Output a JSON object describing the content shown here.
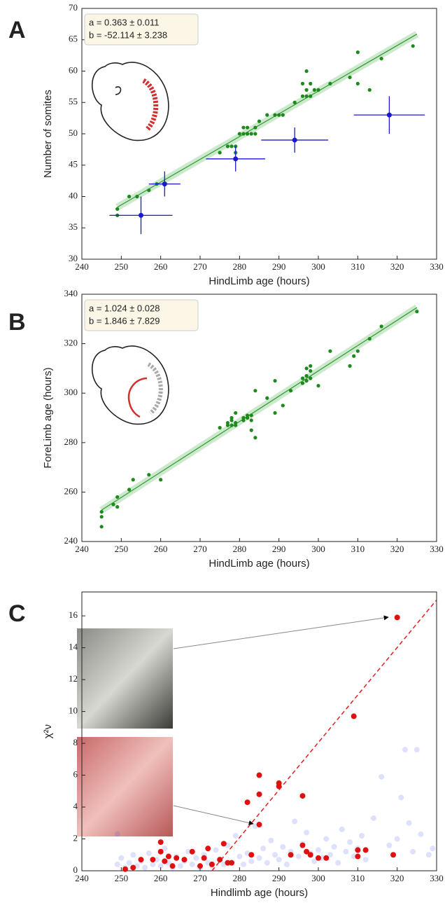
{
  "chart_data": [
    {
      "type": "scatter",
      "label": "A",
      "xlabel": "HindLimb age (hours)",
      "ylabel": "Number of somites",
      "annotation": [
        "a = 0.363 ± 0.011",
        "b = -52.114 ± 3.238"
      ],
      "xlim": [
        240,
        330
      ],
      "ylim": [
        30,
        70
      ],
      "xticks": [
        240,
        250,
        260,
        270,
        280,
        290,
        300,
        310,
        320,
        330
      ],
      "yticks": [
        30,
        35,
        40,
        45,
        50,
        55,
        60,
        65,
        70
      ],
      "points": {
        "color": "#1e8a1e",
        "x": [
          249,
          249,
          252,
          254,
          257,
          259,
          261,
          275,
          277,
          278,
          279,
          279,
          280,
          281,
          281,
          282,
          282,
          283,
          284,
          284,
          285,
          287,
          289,
          290,
          291,
          294,
          296,
          296,
          297,
          297,
          297,
          298,
          298,
          299,
          300,
          303,
          308,
          310,
          310,
          313,
          316,
          324
        ],
        "y": [
          38,
          37,
          40,
          40,
          41,
          42,
          42,
          47,
          48,
          48,
          48,
          47,
          50,
          50,
          51,
          50,
          51,
          50,
          50,
          51,
          52,
          53,
          53,
          53,
          53,
          55,
          56,
          58,
          57,
          56,
          60,
          58,
          56,
          57,
          57,
          58,
          59,
          58,
          63,
          57,
          62,
          64
        ]
      },
      "errorbars": {
        "color": "#1a1acc",
        "x": [
          255,
          261,
          279,
          294,
          318
        ],
        "y": [
          37,
          42,
          46,
          49,
          53
        ],
        "xerr": [
          8,
          4,
          7.5,
          8.5,
          9
        ],
        "yerr": [
          3,
          2,
          2,
          2,
          3
        ]
      },
      "fit": {
        "color": "#2e9a2e",
        "x": [
          249,
          325
        ],
        "y": [
          38.3,
          65.9
        ]
      }
    },
    {
      "type": "scatter",
      "label": "B",
      "xlabel": "HindLimb age (hours)",
      "ylabel": "ForeLimb age (hours)",
      "annotation": [
        "a = 1.024 ± 0.028",
        "b = 1.846 ± 7.829"
      ],
      "xlim": [
        240,
        330
      ],
      "ylim": [
        240,
        340
      ],
      "xticks": [
        240,
        250,
        260,
        270,
        280,
        290,
        300,
        310,
        320,
        330
      ],
      "yticks": [
        240,
        260,
        280,
        300,
        320,
        340
      ],
      "points": {
        "color": "#1e8a1e",
        "x": [
          245,
          245,
          245,
          248,
          249,
          249,
          252,
          253,
          257,
          260,
          275,
          277,
          277,
          278,
          278,
          278,
          279,
          279,
          279,
          281,
          281,
          282,
          282,
          283,
          283,
          283,
          284,
          284,
          287,
          289,
          289,
          291,
          293,
          296,
          296,
          297,
          297,
          297,
          298,
          298,
          298,
          300,
          303,
          308,
          309,
          310,
          313,
          316,
          325
        ],
        "y": [
          252,
          250,
          246,
          255,
          258,
          254,
          261,
          265,
          267,
          265,
          286,
          288,
          287,
          289,
          287,
          290,
          287,
          288,
          292,
          290,
          289,
          290,
          291,
          285,
          289,
          291,
          301,
          282,
          298,
          292,
          305,
          295,
          301,
          306,
          304,
          310,
          307,
          305,
          309,
          306,
          311,
          303,
          317,
          311,
          315,
          317,
          322,
          327,
          333
        ]
      },
      "fit": {
        "color": "#2e9a2e",
        "x": [
          245,
          325
        ],
        "y": [
          252.7,
          334.6
        ]
      }
    },
    {
      "type": "scatter",
      "label": "C",
      "xlabel": "Hindlimb age (hours)",
      "ylabel": "χ²ν",
      "xlim": [
        240,
        330
      ],
      "ylim": [
        0,
        17.5
      ],
      "xticks": [
        240,
        250,
        260,
        270,
        280,
        290,
        300,
        310,
        320,
        330
      ],
      "yticks": [
        0,
        2,
        4,
        6,
        8,
        10,
        12,
        14,
        16
      ],
      "background": {
        "color": "#4a5ae8",
        "x": [
          249,
          249,
          250,
          251,
          252,
          253,
          254,
          255,
          256,
          257,
          258,
          259,
          260,
          261,
          262,
          263,
          264,
          265,
          266,
          267,
          268,
          269,
          270,
          271,
          272,
          273,
          274,
          275,
          276,
          277,
          278,
          279,
          280,
          281,
          282,
          283,
          284,
          285,
          286,
          287,
          288,
          289,
          290,
          291,
          292,
          293,
          294,
          295,
          296,
          297,
          298,
          299,
          300,
          301,
          302,
          303,
          304,
          305,
          306,
          307,
          308,
          309,
          310,
          311,
          312,
          314,
          316,
          318,
          320,
          321,
          322,
          323,
          324,
          325,
          326,
          328,
          329
        ],
        "y": [
          2.3,
          0.4,
          0.8,
          0.2,
          0.5,
          1.0,
          0.3,
          0.6,
          0.2,
          1.1,
          0.4,
          0.7,
          0.3,
          1.4,
          0.5,
          0.2,
          0.9,
          0.3,
          0.6,
          1.2,
          0.4,
          0.8,
          0.2,
          1.0,
          0.5,
          0.3,
          1.3,
          0.7,
          0.4,
          1.6,
          0.5,
          2.2,
          0.9,
          0.4,
          1.1,
          0.6,
          2.8,
          0.8,
          1.4,
          0.5,
          1.9,
          1.0,
          0.7,
          1.5,
          0.4,
          1.2,
          3.1,
          0.9,
          1.7,
          2.4,
          1.1,
          0.6,
          1.3,
          0.8,
          2.0,
          1.0,
          1.5,
          0.5,
          2.6,
          1.2,
          1.8,
          0.9,
          1.4,
          2.2,
          0.7,
          3.3,
          5.9,
          1.6,
          2.0,
          4.6,
          7.6,
          3.0,
          1.2,
          7.6,
          2.3,
          1.0,
          1.4
        ]
      },
      "points": {
        "color": "#e01010",
        "x": [
          251,
          253,
          255,
          258,
          260,
          260,
          261,
          262,
          263,
          264,
          266,
          268,
          270,
          271,
          272,
          273,
          275,
          276,
          277,
          278,
          282,
          283,
          285,
          285,
          285,
          290,
          290,
          293,
          296,
          296,
          297,
          298,
          300,
          302,
          309,
          310,
          310,
          312,
          319,
          320
        ],
        "y": [
          0.1,
          0.2,
          0.7,
          0.7,
          1.2,
          1.8,
          0.6,
          0.9,
          0.3,
          0.8,
          0.7,
          1.2,
          0.3,
          0.8,
          1.4,
          0.4,
          0.7,
          1.7,
          0.5,
          0.5,
          4.3,
          1.0,
          6.0,
          4.8,
          2.9,
          5.5,
          5.3,
          1.0,
          4.7,
          1.6,
          1.2,
          1.0,
          0.8,
          0.8,
          9.7,
          1.3,
          0.9,
          1.3,
          1.0,
          15.9
        ]
      },
      "trend": {
        "color": "#e02020",
        "x": [
          273,
          330
        ],
        "y": [
          0,
          17
        ]
      }
    }
  ]
}
